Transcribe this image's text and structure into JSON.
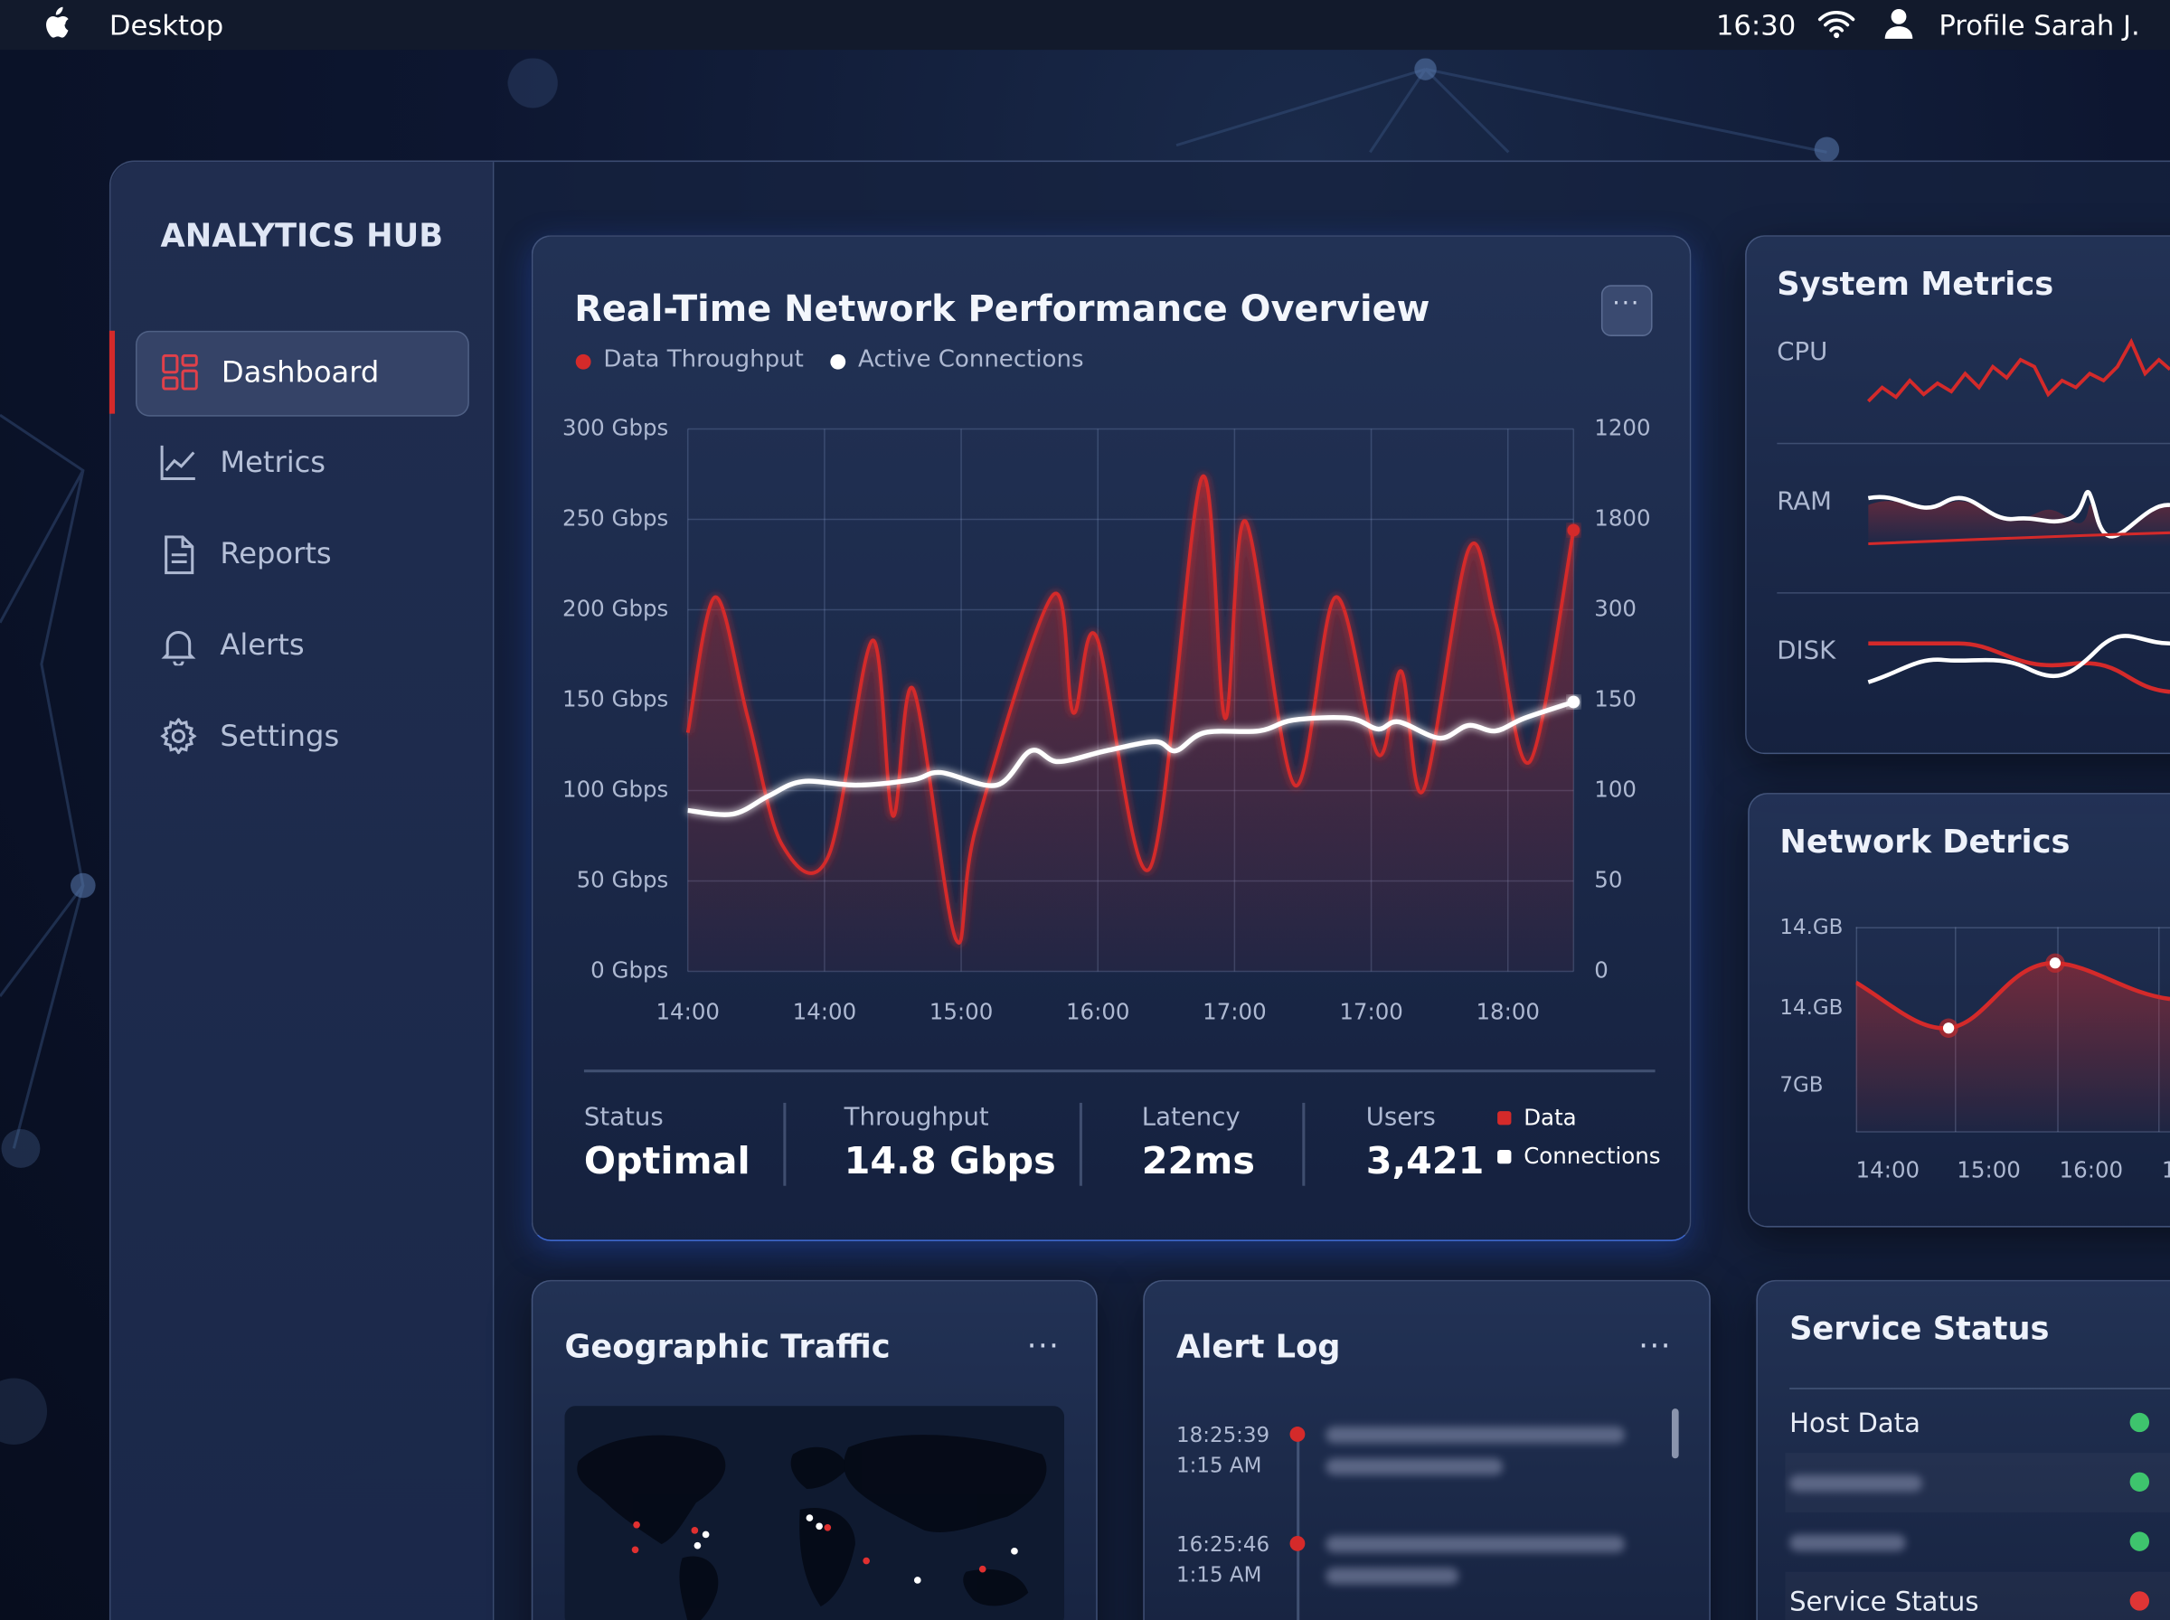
{
  "menu_bar": {
    "app": "Desktop",
    "time": "16:30",
    "profile": "Profile Sarah J."
  },
  "sidebar": {
    "title": "ANALYTICS HUB",
    "items": [
      "Dashboard",
      "Metrics",
      "Reports",
      "Alerts",
      "Settings"
    ]
  },
  "chart_data": {
    "type": "line",
    "title": "Real-Time Network Performance Overview",
    "series": [
      {
        "name": "Data Throughput",
        "color": "#d42a2a",
        "x": [
          0,
          0.2,
          0.44,
          0.69,
          1.03,
          1.35,
          1.5,
          1.65,
          1.96,
          2.11,
          2.67,
          2.82,
          2.99,
          3.38,
          3.76,
          3.93,
          4.08,
          4.44,
          4.74,
          5.05,
          5.22,
          5.38,
          5.71,
          5.91,
          6.16,
          6.48
        ],
        "values": [
          132,
          207,
          140,
          70,
          64,
          183,
          86,
          156,
          18,
          80,
          208,
          143,
          185,
          57,
          273,
          140,
          249,
          103,
          207,
          120,
          166,
          100,
          233,
          193,
          116,
          244
        ]
      },
      {
        "name": "Active Connections",
        "color": "#ffffff",
        "x": [
          0,
          0.33,
          0.59,
          0.84,
          1.24,
          1.65,
          1.85,
          2.26,
          2.51,
          2.71,
          3.06,
          3.42,
          3.57,
          3.78,
          4.18,
          4.43,
          4.84,
          5.05,
          5.2,
          5.5,
          5.71,
          5.91,
          6.12,
          6.48
        ],
        "values": [
          89,
          87,
          97,
          105,
          103,
          106,
          110,
          103,
          122,
          116,
          122,
          127,
          122,
          132,
          133,
          139,
          140,
          134,
          138,
          129,
          136,
          133,
          140,
          149
        ]
      }
    ],
    "xlim": [
      0,
      6.48
    ],
    "xticks": [
      {
        "value": 0,
        "label": "14:00"
      },
      {
        "value": 1,
        "label": "14:00"
      },
      {
        "value": 2,
        "label": "15:00"
      },
      {
        "value": 3,
        "label": "16:00"
      },
      {
        "value": 4,
        "label": "17:00"
      },
      {
        "value": 5,
        "label": "17:00"
      },
      {
        "value": 6,
        "label": "18:00"
      }
    ],
    "ylim": [
      0,
      300
    ],
    "yticks": [
      {
        "value": 0,
        "label": "0 Gbps"
      },
      {
        "value": 50,
        "label": "50 Gbps"
      },
      {
        "value": 100,
        "label": "100 Gbps"
      },
      {
        "value": 150,
        "label": "150 Gbps"
      },
      {
        "value": 200,
        "label": "200 Gbps"
      },
      {
        "value": 250,
        "label": "250 Gbps"
      },
      {
        "value": 300,
        "label": "300 Gbps"
      }
    ],
    "y2_labels": [
      "0",
      "50",
      "100",
      "150",
      "300",
      "1800",
      "1200"
    ],
    "grid": true
  },
  "stats": [
    {
      "label": "Status",
      "value": "Optimal"
    },
    {
      "label": "Throughput",
      "value": "14.8 Gbps"
    },
    {
      "label": "Latency",
      "value": "22ms"
    },
    {
      "label": "Users",
      "value": "3,421"
    }
  ],
  "stats_legend": [
    "Data",
    "Connections"
  ],
  "system_metrics": {
    "title": "System Metrics",
    "rows": [
      "CPU",
      "RAM",
      "DISK"
    ]
  },
  "network_detrics": {
    "title": "Network Detrics",
    "y_labels": [
      "14.GB",
      "14.GB",
      "7GB"
    ],
    "x_labels": [
      "14:00",
      "15:00",
      "16:00",
      "1"
    ]
  },
  "geographic_traffic": {
    "title": "Geographic Traffic"
  },
  "alert_log": {
    "title": "Alert Log",
    "entries": [
      {
        "time": "18:25:39",
        "date": "1:15 AM"
      },
      {
        "time": "16:25:46",
        "date": "1:15 AM"
      }
    ]
  },
  "service_status": {
    "title": "Service Status",
    "rows": [
      "Host Data",
      "Service Status"
    ]
  }
}
